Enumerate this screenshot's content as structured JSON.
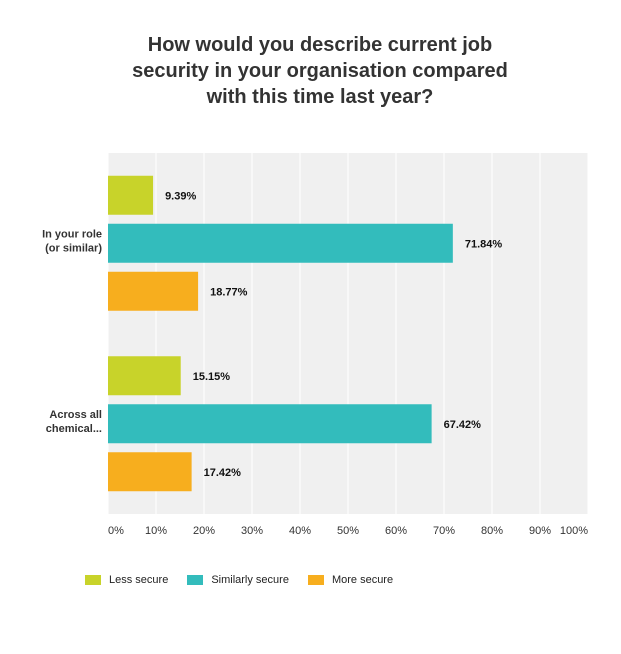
{
  "chart_data": {
    "type": "bar",
    "orientation": "horizontal",
    "title_lines": [
      "How would you describe current job",
      "security in your organisation compared",
      "with this time last year?"
    ],
    "categories": [
      [
        "In your role",
        "(or similar)"
      ],
      [
        "Across all",
        "chemical..."
      ]
    ],
    "series": [
      {
        "name": "Less secure",
        "color": "#c8d32a",
        "values": [
          9.39,
          15.15
        ]
      },
      {
        "name": "Similarly secure",
        "color": "#33bcbc",
        "values": [
          71.84,
          67.42
        ]
      },
      {
        "name": "More secure",
        "color": "#f7ae1e",
        "values": [
          18.77,
          17.42
        ]
      }
    ],
    "value_suffix": "%",
    "xlim": [
      0,
      100
    ],
    "xticks": [
      "0%",
      "10%",
      "20%",
      "30%",
      "40%",
      "50%",
      "60%",
      "70%",
      "80%",
      "90%",
      "100%"
    ],
    "grid": true,
    "legend_position": "bottom-left"
  }
}
